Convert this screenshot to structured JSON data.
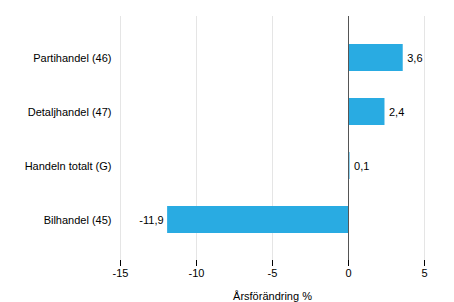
{
  "chart_data": {
    "type": "bar",
    "orientation": "horizontal",
    "categories": [
      "Bilhandel (45)",
      "Handeln totalt (G)",
      "Detaljhandel (47)",
      "Partihandel (46)"
    ],
    "values": [
      -11.9,
      0.1,
      2.4,
      3.6
    ],
    "value_labels": [
      "-11,9",
      "0,1",
      "2,4",
      "3,6"
    ],
    "data_labels": true,
    "color": "#29abe2",
    "xlabel": "Årsförändring %",
    "xlim": [
      -15,
      5
    ],
    "xticks": [
      -15,
      -10,
      -5,
      0,
      5
    ],
    "grid": true
  }
}
